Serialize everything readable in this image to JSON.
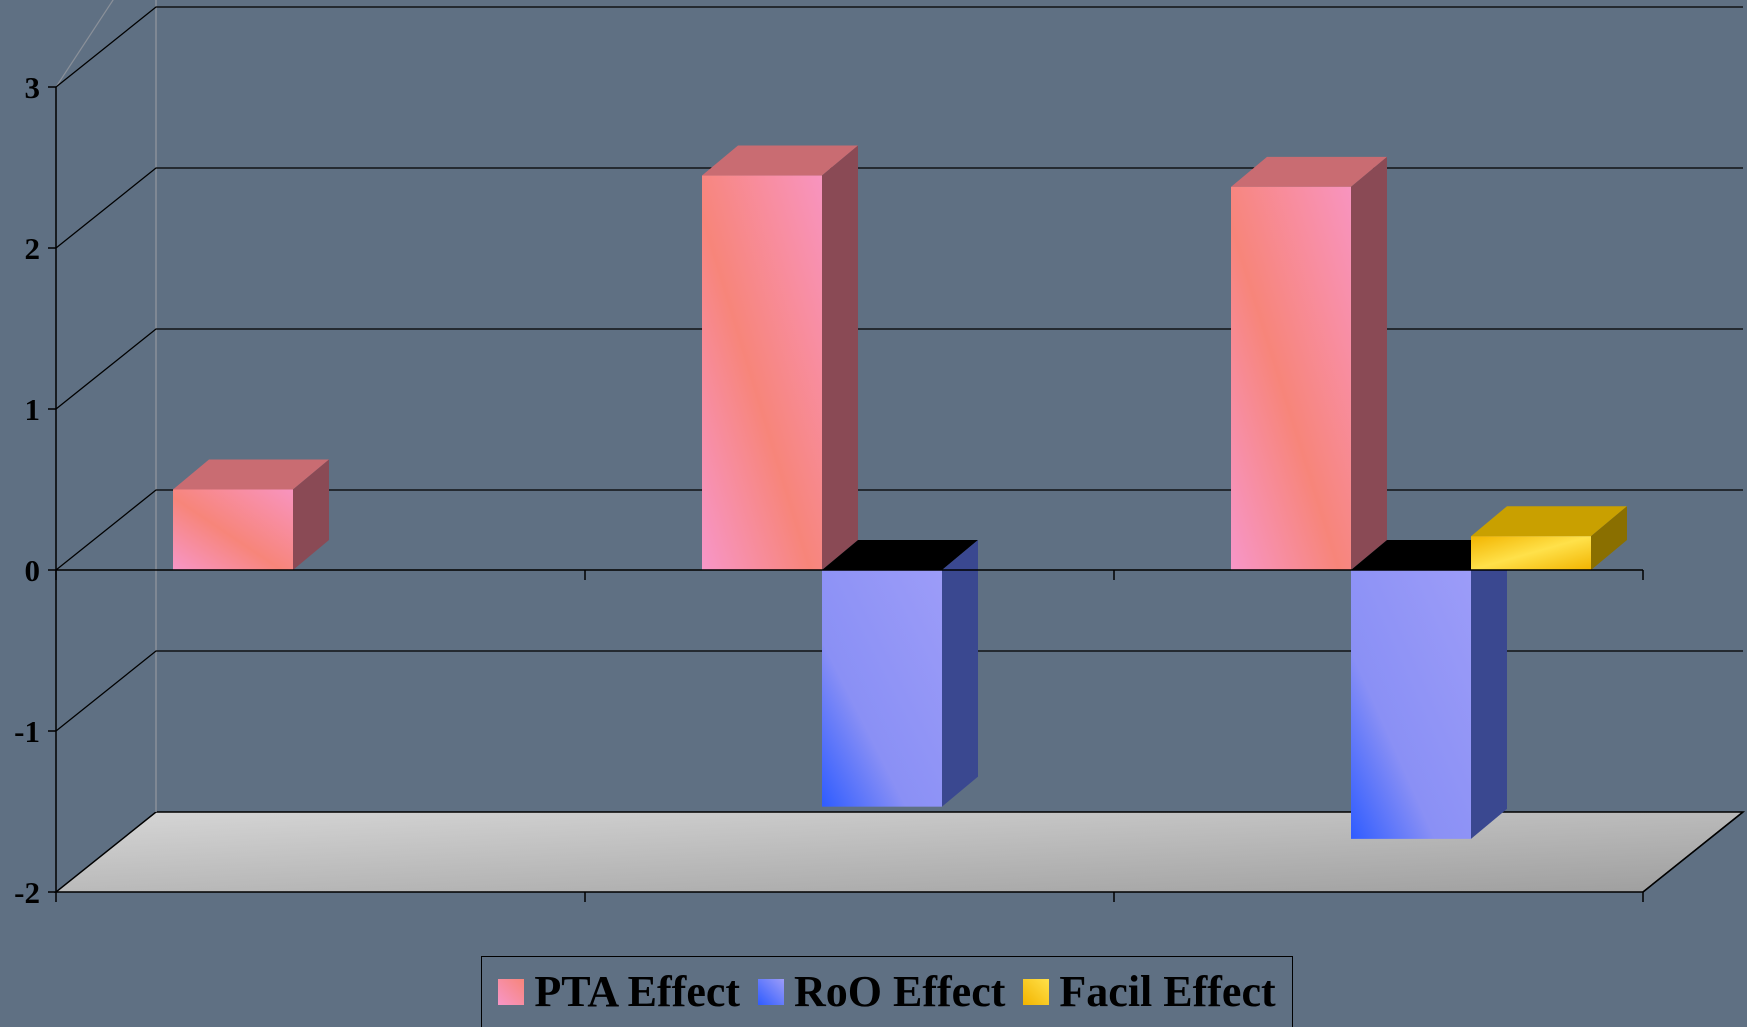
{
  "chart_data": {
    "type": "bar",
    "style": "3d-clustered-column",
    "categories": [
      "",
      "",
      ""
    ],
    "series": [
      {
        "name": "PTA Effect",
        "values": [
          0.5,
          2.45,
          2.38
        ]
      },
      {
        "name": "RoO Effect",
        "values": [
          null,
          -1.47,
          -1.67
        ]
      },
      {
        "name": "Facil Effect",
        "values": [
          null,
          null,
          0.21
        ]
      }
    ],
    "ylim": [
      -2,
      3
    ],
    "yticks": [
      "3",
      "2",
      "1",
      "0",
      "-1",
      "-2"
    ],
    "ytick_values": [
      3,
      2,
      1,
      0,
      -1,
      -2
    ],
    "grid": true,
    "legend_position": "bottom",
    "colors": {
      "background": "#5f7083",
      "PTA Effect": "#f7867f",
      "RoO Effect": "#8f8ff7",
      "Facil Effect": "#f2c200",
      "floor": "#bdbdbd",
      "gridlines": "#000000"
    }
  },
  "legend": {
    "items": [
      {
        "label": "PTA Effect"
      },
      {
        "label": "RoO Effect"
      },
      {
        "label": "Facil Effect"
      }
    ]
  }
}
